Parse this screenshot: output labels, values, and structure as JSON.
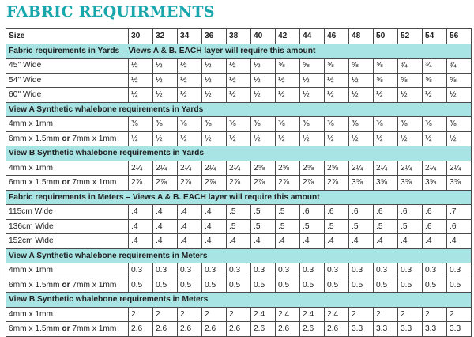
{
  "title": "FABRIC REQUIRMENTS",
  "header": {
    "label": "Size",
    "sizes": [
      "30",
      "32",
      "34",
      "36",
      "38",
      "40",
      "42",
      "44",
      "46",
      "48",
      "50",
      "52",
      "54",
      "56"
    ]
  },
  "rows": [
    {
      "type": "section",
      "label": "Fabric requirements in Yards –  Views A & B.  EACH layer will require this amount"
    },
    {
      "type": "data",
      "label": "45'' Wide",
      "values": [
        "½",
        "½",
        "½",
        "½",
        "½",
        "½",
        "⅝",
        "⅝",
        "⅝",
        "⅝",
        "⅝",
        "¾",
        "¾",
        "¾"
      ]
    },
    {
      "type": "data",
      "label": "54'' Wide",
      "values": [
        "½",
        "½",
        "½",
        "½",
        "½",
        "½",
        "½",
        "½",
        "½",
        "½",
        "⅝",
        "⅝",
        "⅝",
        "⅝"
      ]
    },
    {
      "type": "data",
      "label": "60'' Wide",
      "values": [
        "½",
        "½",
        "½",
        "½",
        "½",
        "½",
        "½",
        "½",
        "½",
        "½",
        "½",
        "½",
        "½",
        "½"
      ]
    },
    {
      "type": "section",
      "label": "View A Synthetic whalebone requirements in Yards"
    },
    {
      "type": "data",
      "label": "4mm x 1mm",
      "values": [
        "⅜",
        "⅜",
        "⅜",
        "⅜",
        "⅜",
        "⅜",
        "⅜",
        "⅜",
        "⅜",
        "⅜",
        "⅜",
        "⅜",
        "⅜",
        "⅜"
      ]
    },
    {
      "type": "data",
      "label_parts": [
        "6mm x 1.5mm ",
        "or",
        " 7mm x 1mm"
      ],
      "values": [
        "½",
        "½",
        "½",
        "½",
        "½",
        "½",
        "½",
        "½",
        "½",
        "½",
        "½",
        "½",
        "½",
        "½"
      ]
    },
    {
      "type": "section",
      "label": "View B Synthetic whalebone requirements in Yards"
    },
    {
      "type": "data",
      "label": "4mm x 1mm",
      "values": [
        "2¼",
        "2¼",
        "2¼",
        "2¼",
        "2¼",
        "2⅝",
        "2⅝",
        "2⅝",
        "2⅝",
        "2¼",
        "2¼",
        "2¼",
        "2¼",
        "2¼"
      ]
    },
    {
      "type": "data",
      "label_parts": [
        "6mm x 1.5mm ",
        "or",
        " 7mm x 1mm"
      ],
      "values": [
        "2⅞",
        "2⅞",
        "2⅞",
        "2⅞",
        "2⅞",
        "2⅞",
        "2⅞",
        "2⅞",
        "2⅞",
        "3⅝",
        "3⅝",
        "3⅝",
        "3⅝",
        "3⅝"
      ]
    },
    {
      "type": "section",
      "label": "Fabric requirements in Meters – Views A & B.  EACH layer will require this amount"
    },
    {
      "type": "data",
      "label": "115cm Wide",
      "values": [
        ".4",
        ".4",
        ".4",
        ".4",
        ".5",
        ".5",
        ".5",
        ".6",
        ".6",
        ".6",
        ".6",
        ".6",
        ".6",
        ".7"
      ]
    },
    {
      "type": "data",
      "label": "136cm Wide",
      "values": [
        ".4",
        ".4",
        ".4",
        ".4",
        ".5",
        ".5",
        ".5",
        ".5",
        ".5",
        ".5",
        ".5",
        ".5",
        ".6",
        ".6"
      ]
    },
    {
      "type": "data",
      "label": "152cm Wide",
      "values": [
        ".4",
        ".4",
        ".4",
        ".4",
        ".4",
        ".4",
        ".4",
        ".4",
        ".4",
        ".4",
        ".4",
        ".4",
        ".4",
        ".4"
      ]
    },
    {
      "type": "section",
      "label": "View A Synthetic whalebone requirements in Meters"
    },
    {
      "type": "data",
      "label": "4mm x 1mm",
      "values": [
        "0.3",
        "0.3",
        "0.3",
        "0.3",
        "0.3",
        "0.3",
        "0.3",
        "0.3",
        "0.3",
        "0.3",
        "0.3",
        "0.3",
        "0.3",
        "0.3"
      ]
    },
    {
      "type": "data",
      "label_parts": [
        "6mm x 1.5mm ",
        "or",
        " 7mm x 1mm"
      ],
      "values": [
        "0.5",
        "0.5",
        "0.5",
        "0.5",
        "0.5",
        "0.5",
        "0.5",
        "0.5",
        "0.5",
        "0.5",
        "0.5",
        "0.5",
        "0.5",
        "0.5"
      ]
    },
    {
      "type": "section",
      "label": "View B Synthetic whalebone requirements in Meters"
    },
    {
      "type": "data",
      "label": "4mm x 1mm",
      "values": [
        "2",
        "2",
        "2",
        "2",
        "2",
        "2.4",
        "2.4",
        "2.4",
        "2.4",
        "2",
        "2",
        "2",
        "2",
        "2"
      ]
    },
    {
      "type": "data",
      "label_parts": [
        "6mm x 1.5mm ",
        "or",
        " 7mm x 1mm"
      ],
      "values": [
        "2.6",
        "2.6",
        "2.6",
        "2.6",
        "2.6",
        "2.6",
        "2.6",
        "2.6",
        "2.6",
        "3.3",
        "3.3",
        "3.3",
        "3.3",
        "3.3"
      ]
    }
  ]
}
